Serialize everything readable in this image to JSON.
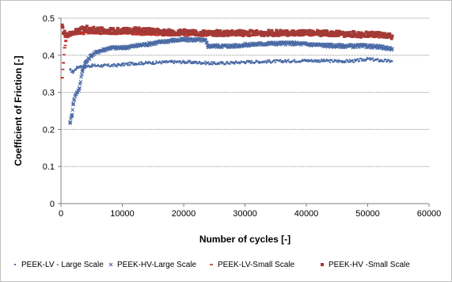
{
  "chart_data": {
    "type": "scatter",
    "xlabel": "Number of cycles [-]",
    "ylabel": "Coefficient of Friction [-]",
    "xlim": [
      0,
      60000
    ],
    "ylim": [
      0,
      0.5
    ],
    "x_ticks": [
      "0",
      "10000",
      "20000",
      "30000",
      "40000",
      "50000",
      "60000"
    ],
    "y_ticks": [
      "0",
      "0.1",
      "0.2",
      "0.3",
      "0.4",
      "0.5"
    ],
    "grid": "horizontal major",
    "legend_position": "bottom",
    "series": [
      {
        "name": "PEEK-LV - Large Scale",
        "marker": "dot",
        "color": "#4a6aa5",
        "points": [
          [
            1500,
            0.36
          ],
          [
            2000,
            0.355
          ],
          [
            2500,
            0.365
          ],
          [
            3000,
            0.37
          ],
          [
            4000,
            0.37
          ],
          [
            5000,
            0.372
          ],
          [
            7000,
            0.372
          ],
          [
            9000,
            0.373
          ],
          [
            10000,
            0.375
          ],
          [
            12000,
            0.378
          ],
          [
            15000,
            0.38
          ],
          [
            18000,
            0.382
          ],
          [
            20000,
            0.382
          ],
          [
            23000,
            0.38
          ],
          [
            25000,
            0.378
          ],
          [
            28000,
            0.38
          ],
          [
            30000,
            0.382
          ],
          [
            33000,
            0.383
          ],
          [
            36000,
            0.384
          ],
          [
            40000,
            0.386
          ],
          [
            43000,
            0.385
          ],
          [
            46000,
            0.384
          ],
          [
            48000,
            0.385
          ],
          [
            50000,
            0.39
          ],
          [
            52000,
            0.386
          ],
          [
            54000,
            0.384
          ]
        ]
      },
      {
        "name": "PEEK-HV-Large Scale",
        "marker": "cross",
        "color": "#4a6aa5",
        "points": [
          [
            1500,
            0.22
          ],
          [
            1800,
            0.24
          ],
          [
            2000,
            0.27
          ],
          [
            2300,
            0.29
          ],
          [
            2600,
            0.3
          ],
          [
            3000,
            0.31
          ],
          [
            3500,
            0.36
          ],
          [
            4000,
            0.38
          ],
          [
            5000,
            0.4
          ],
          [
            6000,
            0.41
          ],
          [
            7000,
            0.415
          ],
          [
            8000,
            0.42
          ],
          [
            10000,
            0.42
          ],
          [
            12000,
            0.425
          ],
          [
            14000,
            0.43
          ],
          [
            16000,
            0.435
          ],
          [
            18000,
            0.44
          ],
          [
            20000,
            0.442
          ],
          [
            22000,
            0.442
          ],
          [
            23500,
            0.44
          ],
          [
            24000,
            0.425
          ],
          [
            26000,
            0.425
          ],
          [
            28000,
            0.425
          ],
          [
            30000,
            0.428
          ],
          [
            32000,
            0.43
          ],
          [
            34000,
            0.432
          ],
          [
            36000,
            0.432
          ],
          [
            38000,
            0.432
          ],
          [
            40000,
            0.43
          ],
          [
            42000,
            0.428
          ],
          [
            44000,
            0.426
          ],
          [
            46000,
            0.425
          ],
          [
            48000,
            0.425
          ],
          [
            50000,
            0.425
          ],
          [
            52000,
            0.422
          ],
          [
            54000,
            0.418
          ]
        ]
      },
      {
        "name": "PEEK-LV-Small Scale",
        "marker": "dash",
        "color": "#c0302a",
        "points": [
          [
            200,
            0.34
          ],
          [
            400,
            0.38
          ],
          [
            600,
            0.42
          ],
          [
            800,
            0.44
          ],
          [
            1000,
            0.45
          ],
          [
            1500,
            0.455
          ],
          [
            2000,
            0.458
          ],
          [
            3000,
            0.46
          ],
          [
            5000,
            0.46
          ],
          [
            8000,
            0.46
          ],
          [
            10000,
            0.46
          ],
          [
            13000,
            0.458
          ],
          [
            16000,
            0.456
          ],
          [
            20000,
            0.456
          ],
          [
            25000,
            0.455
          ],
          [
            30000,
            0.456
          ],
          [
            35000,
            0.457
          ],
          [
            40000,
            0.455
          ],
          [
            45000,
            0.454
          ],
          [
            50000,
            0.452
          ],
          [
            54000,
            0.45
          ]
        ]
      },
      {
        "name": "PEEK-HV -Small Scale",
        "marker": "square",
        "color": "#a33a36",
        "points": [
          [
            200,
            0.48
          ],
          [
            500,
            0.46
          ],
          [
            1000,
            0.455
          ],
          [
            2000,
            0.462
          ],
          [
            3000,
            0.468
          ],
          [
            4000,
            0.472
          ],
          [
            5000,
            0.47
          ],
          [
            6000,
            0.468
          ],
          [
            8000,
            0.466
          ],
          [
            10000,
            0.466
          ],
          [
            12000,
            0.468
          ],
          [
            14000,
            0.466
          ],
          [
            16000,
            0.464
          ],
          [
            18000,
            0.462
          ],
          [
            20000,
            0.462
          ],
          [
            22000,
            0.46
          ],
          [
            25000,
            0.46
          ],
          [
            28000,
            0.46
          ],
          [
            30000,
            0.46
          ],
          [
            33000,
            0.46
          ],
          [
            36000,
            0.46
          ],
          [
            40000,
            0.46
          ],
          [
            43000,
            0.46
          ],
          [
            46000,
            0.458
          ],
          [
            49000,
            0.456
          ],
          [
            52000,
            0.455
          ],
          [
            54000,
            0.452
          ]
        ]
      }
    ]
  }
}
